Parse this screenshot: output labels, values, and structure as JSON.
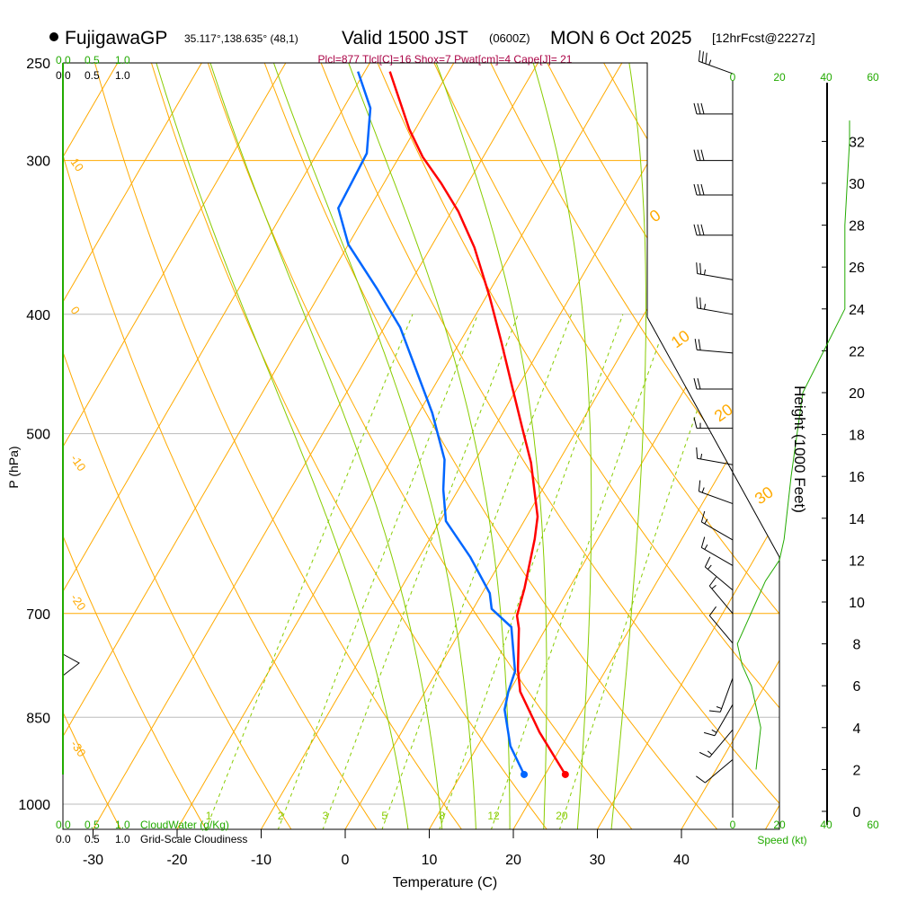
{
  "header": {
    "station": "FujigawaGP",
    "coords": "35.117°,138.635° (48,1)",
    "valid": "Valid 1500 JST",
    "utc": "(0600Z)",
    "date": "MON 6 Oct 2025",
    "forecast": "[12hrFcst@2227z]",
    "indices": "Plcl=877 Tlcl[C]=16 Shox=7 Pwat[cm]=4 Cape[J]= 21"
  },
  "colors": {
    "temp": "#ff0000",
    "dewpoint": "#0066ff",
    "isotherm": "#ffaa00",
    "moist": "#88cc00",
    "green": "#22aa00",
    "indices": "#aa0044"
  },
  "chart_data": {
    "type": "skew-t",
    "title": "FujigawaGP Valid 1500 JST MON 6 Oct 2025",
    "xlabel": "Temperature (C)",
    "ylabel": "P (hPa)",
    "y2label": "Height (1000 Feet)",
    "xticks": [
      "-30",
      "-20",
      "-10",
      "0",
      "10",
      "20",
      "30",
      "40"
    ],
    "xtick_values": [
      -30,
      -20,
      -10,
      0,
      10,
      20,
      30,
      40
    ],
    "pressure_ticks": [
      "250",
      "300",
      "400",
      "500",
      "700",
      "850",
      "1000"
    ],
    "pressure_values": [
      250,
      300,
      400,
      500,
      700,
      850,
      1000
    ],
    "height_ticks": [
      "0",
      "2",
      "4",
      "6",
      "8",
      "10",
      "12",
      "14",
      "16",
      "18",
      "20",
      "22",
      "24",
      "26",
      "28",
      "30",
      "32"
    ],
    "speed_ticks": [
      "0",
      "20",
      "40",
      "60"
    ],
    "speed_label": "Speed (kt)",
    "cloud_ticks": [
      "0.0",
      "0.5",
      "1.0"
    ],
    "cloudwater_label": "CloudWater (g/Kg)",
    "cloudiness_label": "Grid-Scale Cloudiness",
    "isotherm_labels_left": [
      "10",
      "0",
      "-10",
      "-20",
      "-30"
    ],
    "isotherm_labels_right": [
      "0",
      "10",
      "20",
      "30"
    ],
    "mixing_ratio_labels": [
      "1",
      "2",
      "3",
      "5",
      "8",
      "12",
      "20"
    ],
    "mixing_ratio_values": [
      1,
      2,
      3,
      5,
      8,
      12,
      20
    ],
    "temperature": {
      "name": "Temperature",
      "p": [
        946,
        874,
        810,
        777,
        720,
        703,
        668,
        609,
        584,
        528,
        498,
        458,
        421,
        387,
        353,
        330,
        313,
        298,
        283,
        254
      ],
      "t": [
        22.4,
        16.4,
        11.3,
        9.5,
        6.8,
        5.7,
        4.7,
        2.5,
        1.3,
        -3.2,
        -6.3,
        -10.7,
        -15.1,
        -19.6,
        -24.8,
        -29.2,
        -33.2,
        -37.2,
        -40.7,
        -47.0
      ]
    },
    "dewpoint": {
      "name": "Dewpoint",
      "p": [
        946,
        897,
        838,
        810,
        780,
        718,
        694,
        674,
        630,
        589,
        555,
        525,
        481,
        410,
        381,
        351,
        328,
        311,
        296,
        272,
        254
      ],
      "t": [
        17.5,
        13.9,
        10.7,
        9.9,
        9.3,
        5.8,
        2.2,
        0.9,
        -3.9,
        -9.3,
        -11.8,
        -13.7,
        -18.4,
        -28.1,
        -33.6,
        -40.0,
        -43.7,
        -43.9,
        -44.1,
        -46.8,
        -50.8
      ]
    },
    "winds": [
      {
        "p": 255,
        "dir": 290,
        "kt": 35
      },
      {
        "p": 275,
        "dir": 270,
        "kt": 30
      },
      {
        "p": 300,
        "dir": 270,
        "kt": 30
      },
      {
        "p": 320,
        "dir": 270,
        "kt": 30
      },
      {
        "p": 345,
        "dir": 270,
        "kt": 30
      },
      {
        "p": 375,
        "dir": 280,
        "kt": 25
      },
      {
        "p": 400,
        "dir": 280,
        "kt": 25
      },
      {
        "p": 430,
        "dir": 275,
        "kt": 20
      },
      {
        "p": 460,
        "dir": 270,
        "kt": 20
      },
      {
        "p": 495,
        "dir": 270,
        "kt": 15
      },
      {
        "p": 530,
        "dir": 280,
        "kt": 15
      },
      {
        "p": 570,
        "dir": 290,
        "kt": 15
      },
      {
        "p": 610,
        "dir": 300,
        "kt": 15
      },
      {
        "p": 640,
        "dir": 300,
        "kt": 15
      },
      {
        "p": 670,
        "dir": 310,
        "kt": 15
      },
      {
        "p": 700,
        "dir": 320,
        "kt": 15
      },
      {
        "p": 740,
        "dir": 320,
        "kt": 10
      },
      {
        "p": 790,
        "dir": 200,
        "kt": 15
      },
      {
        "p": 830,
        "dir": 210,
        "kt": 15
      },
      {
        "p": 870,
        "dir": 220,
        "kt": 15
      },
      {
        "p": 920,
        "dir": 230,
        "kt": 10
      }
    ],
    "speed_profile": {
      "height_kft": [
        2,
        4,
        6,
        7,
        8,
        9,
        10,
        11,
        12,
        13,
        16,
        20,
        24,
        28,
        32,
        33
      ],
      "kt": [
        10,
        12,
        8,
        4,
        2,
        6,
        10,
        14,
        20,
        22,
        25,
        30,
        48,
        48,
        50,
        50
      ]
    }
  }
}
